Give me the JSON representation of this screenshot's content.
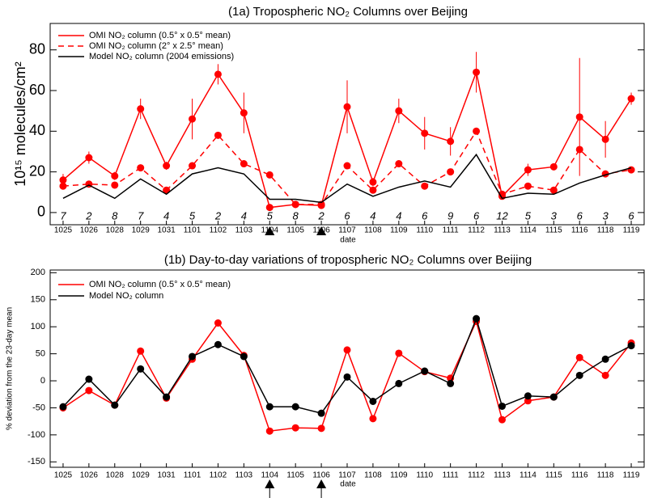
{
  "chart_data": [
    {
      "type": "line",
      "title": "(1a) Tropospheric NO₂ Columns over Beijing",
      "ylabel": "10¹⁵ molecules/cm²",
      "xlabel": "date",
      "categories": [
        "1025",
        "1026",
        "1028",
        "1029",
        "1031",
        "1101",
        "1102",
        "1103",
        "1104",
        "1105",
        "1106",
        "1107",
        "1108",
        "1109",
        "1110",
        "1111",
        "1112",
        "1113",
        "1114",
        "1115",
        "1116",
        "1118",
        "1119"
      ],
      "series": [
        {
          "name": "OMI NO₂ column (0.5° x 0.5° mean)",
          "color": "#ff0000",
          "linestyle": "solid",
          "marker": true,
          "values": [
            16,
            27,
            18,
            51,
            23,
            46,
            68,
            49,
            2.5,
            4,
            3.5,
            52,
            15,
            50,
            39,
            35,
            69,
            8,
            21,
            22.5,
            47,
            36,
            56
          ],
          "errors": [
            3,
            3,
            2,
            5,
            2,
            10,
            5,
            10,
            0,
            0,
            0,
            13,
            2,
            6,
            8,
            7,
            10,
            0,
            3,
            1,
            29,
            9,
            3
          ]
        },
        {
          "name": "OMI NO₂ column (2° x 2.5° mean)",
          "color": "#ff0000",
          "linestyle": "dashed",
          "marker": true,
          "values": [
            13,
            14,
            13.5,
            22,
            11,
            23,
            38,
            24,
            18.5,
            4,
            4,
            23,
            11,
            24,
            13,
            20,
            40,
            9,
            13,
            11,
            31,
            19,
            21
          ]
        },
        {
          "name": "Model NO₂ column (2004 emissions)",
          "color": "#000000",
          "linestyle": "solid",
          "marker": false,
          "values": [
            7,
            13.5,
            7,
            16.5,
            9,
            19,
            22,
            19,
            6.5,
            6.5,
            5,
            14,
            8,
            12.5,
            15.5,
            12.5,
            28.5,
            7,
            9.5,
            9,
            14.5,
            18.5,
            22
          ]
        }
      ],
      "counts": [
        7,
        2,
        8,
        7,
        4,
        5,
        2,
        4,
        5,
        8,
        2,
        6,
        4,
        4,
        6,
        9,
        6,
        12,
        5,
        3,
        6,
        3,
        6
      ],
      "ylim": [
        -6,
        93
      ],
      "yticks": [
        0,
        20,
        40,
        60,
        80
      ],
      "grid": false,
      "legend": "upper left"
    },
    {
      "type": "line",
      "title": "(1b) Day-to-day variations of tropospheric NO₂ Columns over Beijing",
      "ylabel": "% deviation from the 23-day mean",
      "xlabel": "date",
      "categories": [
        "1025",
        "1026",
        "1028",
        "1029",
        "1031",
        "1101",
        "1102",
        "1103",
        "1104",
        "1105",
        "1106",
        "1107",
        "1108",
        "1109",
        "1110",
        "1111",
        "1112",
        "1113",
        "1114",
        "1115",
        "1116",
        "1118",
        "1119"
      ],
      "series": [
        {
          "name": "OMI NO₂ column (0.5° x 0.5° mean)",
          "color": "#ff0000",
          "linestyle": "solid",
          "marker": true,
          "values": [
            -50,
            -18,
            -45,
            55,
            -32,
            40,
            107,
            47,
            -93,
            -87,
            -88,
            57,
            -70,
            51,
            17,
            5,
            110,
            -72,
            -37,
            -30,
            43,
            10,
            70
          ]
        },
        {
          "name": "Model NO₂ column",
          "color": "#000000",
          "linestyle": "solid",
          "marker": true,
          "values": [
            -48,
            3,
            -45,
            22,
            -30,
            45,
            67,
            45,
            -48,
            -48,
            -60,
            7,
            -38,
            -5,
            18,
            -5,
            115,
            -47,
            -28,
            -30,
            10,
            40,
            65
          ]
        }
      ],
      "ylim": [
        -160,
        205
      ],
      "yticks": [
        -150,
        -100,
        -50,
        0,
        50,
        100,
        150,
        200
      ],
      "grid": false,
      "legend": "upper left"
    }
  ]
}
